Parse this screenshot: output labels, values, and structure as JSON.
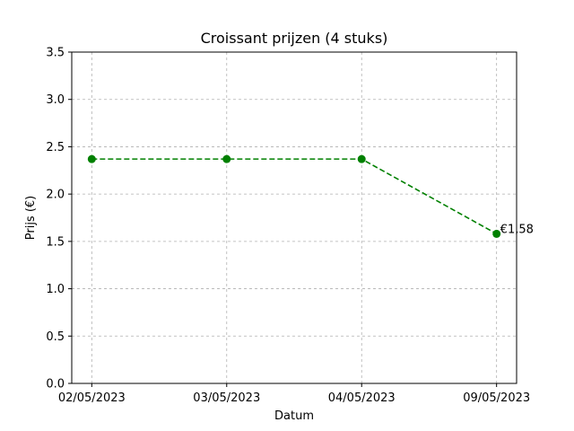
{
  "chart_data": {
    "type": "line",
    "title": "Croissant prijzen (4 stuks)",
    "xlabel": "Datum",
    "ylabel": "Prijs (€)",
    "categories": [
      "02/05/2023",
      "03/05/2023",
      "04/05/2023",
      "09/05/2023"
    ],
    "series": [
      {
        "values": [
          2.37,
          2.37,
          2.37,
          1.58
        ],
        "color": "#008000",
        "line_style": "dashed",
        "marker": "circle"
      }
    ],
    "ylim": [
      0,
      3.5
    ],
    "yticks": [
      0.0,
      0.5,
      1.0,
      1.5,
      2.0,
      2.5,
      3.0,
      3.5
    ],
    "ytick_labels": [
      "0.0",
      "0.5",
      "1.0",
      "1.5",
      "2.0",
      "2.5",
      "3.0",
      "3.5"
    ],
    "grid": true,
    "annotations": [
      {
        "category": "09/05/2023",
        "value": 1.58,
        "text": "€1,58"
      }
    ]
  }
}
